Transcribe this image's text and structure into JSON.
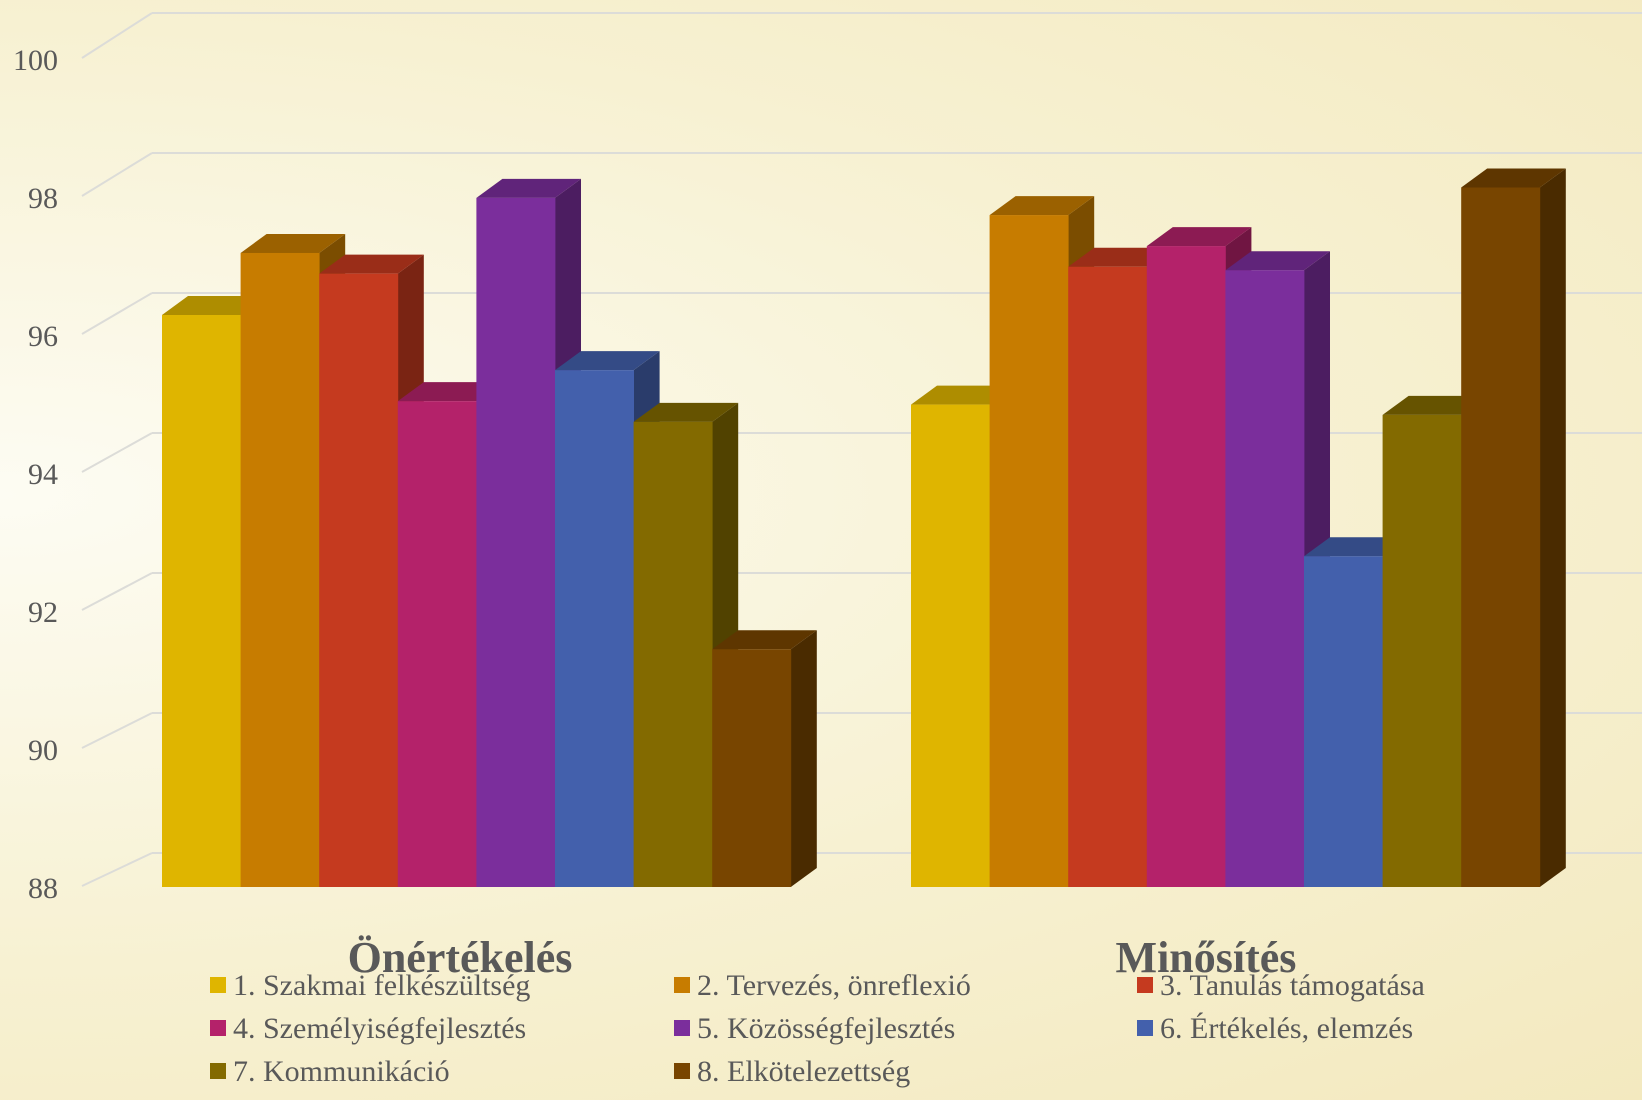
{
  "chart_data": {
    "type": "bar",
    "categories": [
      "Önértékelés",
      "Minősítés"
    ],
    "series": [
      {
        "name": "1. Szakmai felkészültség",
        "color": "#dfb500",
        "values": [
          96.3,
          95.0
        ]
      },
      {
        "name": "2. Tervezés, önreflexió",
        "color": "#c77c00",
        "values": [
          97.2,
          97.75
        ]
      },
      {
        "name": "3. Tanulás támogatása",
        "color": "#c53a1f",
        "values": [
          96.9,
          97.0
        ]
      },
      {
        "name": "4. Személyiségfejlesztés",
        "color": "#b4226a",
        "values": [
          95.05,
          97.3
        ]
      },
      {
        "name": "5. Közösségfejlesztés",
        "color": "#7b2e9c",
        "values": [
          98.0,
          96.95
        ]
      },
      {
        "name": "6. Értékelés, elemzés",
        "color": "#4360ac",
        "values": [
          95.5,
          92.8
        ]
      },
      {
        "name": "7. Kommunikáció",
        "color": "#836a00",
        "values": [
          94.75,
          94.85
        ]
      },
      {
        "name": "8. Elkötelezettség",
        "color": "#784500",
        "values": [
          91.45,
          98.15
        ]
      }
    ],
    "yticks": [
      "88",
      "90",
      "92",
      "94",
      "96",
      "98",
      "100"
    ],
    "ylim": [
      88,
      100
    ],
    "grid": true,
    "legend_position": "bottom",
    "style": "3d-clustered-column"
  }
}
